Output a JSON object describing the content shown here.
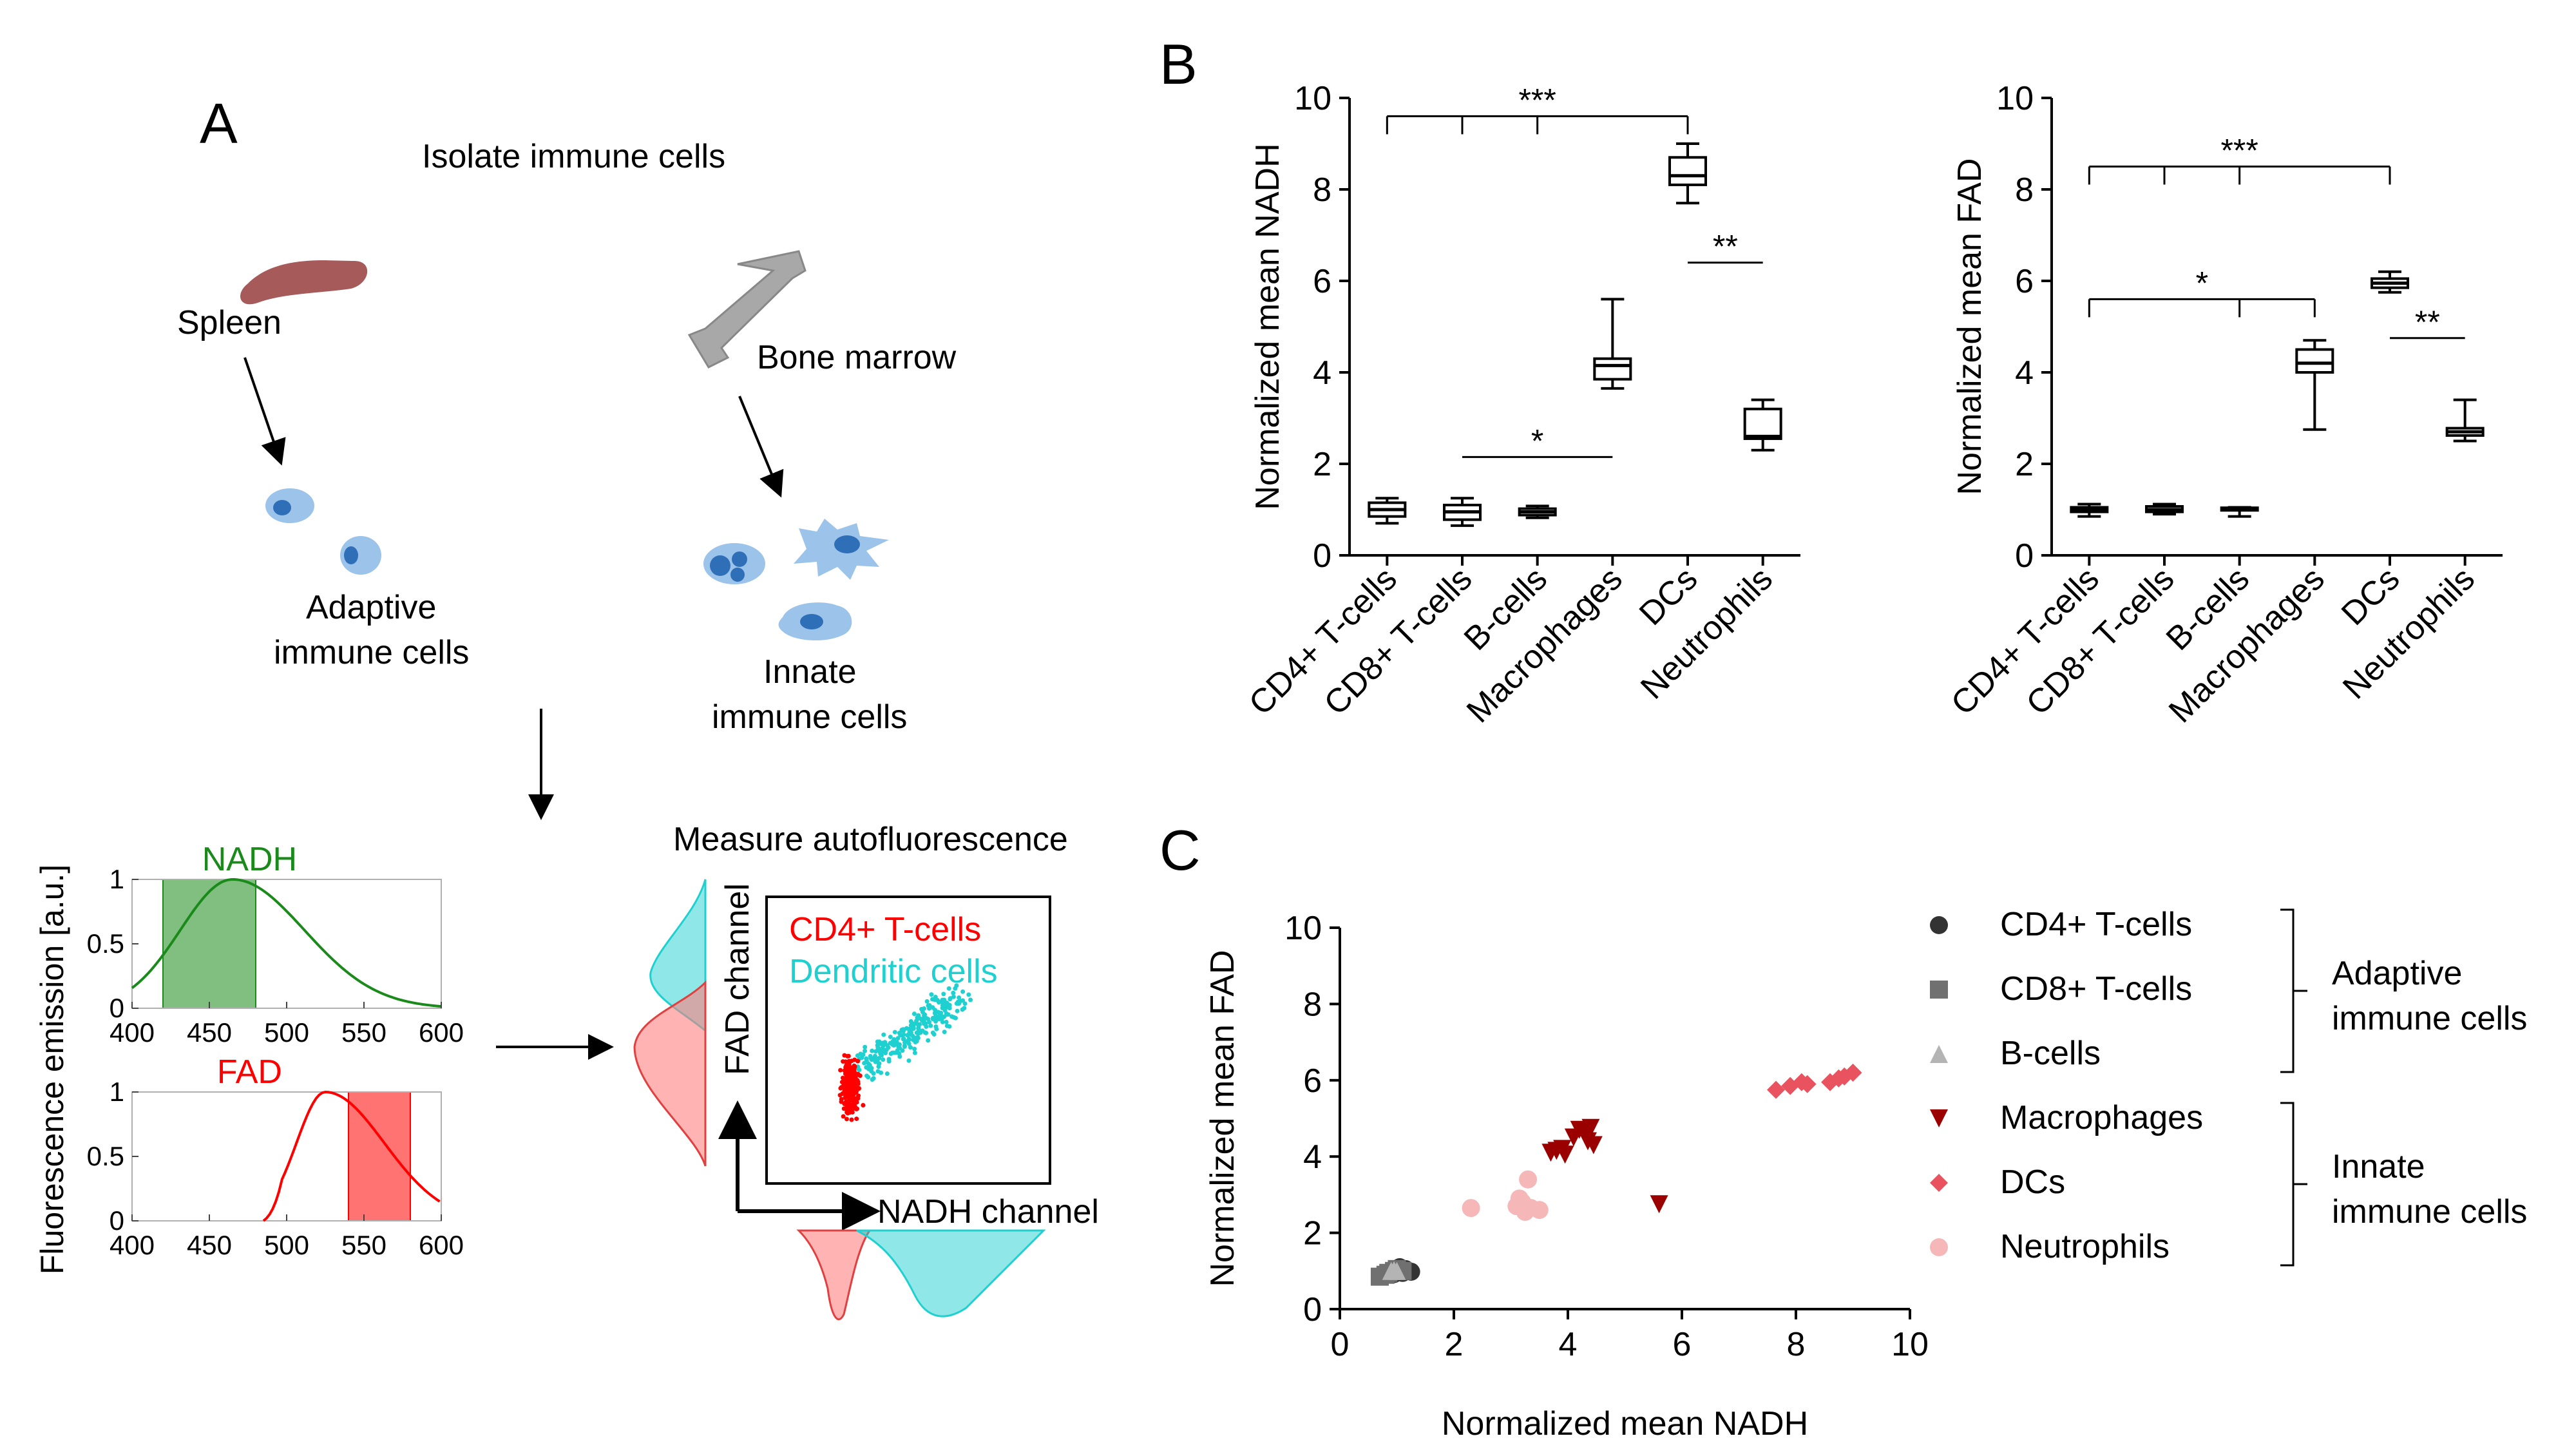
{
  "panel_a": {
    "label": "A",
    "title": "Isolate immune cells",
    "spleen_label": "Spleen",
    "bone_marrow_label": "Bone marrow",
    "adaptive_label_1": "Adaptive",
    "adaptive_label_2": "immune cells",
    "innate_label_1": "Innate",
    "innate_label_2": "immune cells",
    "measure_label": "Measure autofluorescence",
    "fad_channel_label": "FAD channel",
    "nadh_channel_label": "NADH channel",
    "flow_legend": [
      {
        "name": "CD4+ T-cells",
        "color": "#ff0000"
      },
      {
        "name": "Dendritic cells",
        "color": "#1fd0d0"
      }
    ],
    "colors": {
      "spleen": "#a65a5a",
      "bone": "#a8a8a8",
      "cell": "#9cc3ea",
      "nucleus": "#2f6fb8",
      "nadh": "#1a8a1a",
      "fad": "#ff0000",
      "cyan": "#1fd0d0"
    }
  },
  "chart_data": [
    {
      "type": "line",
      "title": "NADH",
      "ylabel": "Fluorescence emission [a.u.]",
      "xlim": [
        400,
        600
      ],
      "ylim": [
        0,
        1
      ],
      "xticks": [
        "400",
        "450",
        "500",
        "550",
        "600"
      ],
      "yticks": [
        "0",
        "0.5",
        "1"
      ],
      "peak": 465,
      "width_left": 40,
      "width_right": 55,
      "band": [
        420,
        480
      ],
      "color": "#1a8a1a"
    },
    {
      "type": "line",
      "title": "FAD",
      "xlim": [
        400,
        600
      ],
      "ylim": [
        0,
        1
      ],
      "xticks": [
        "400",
        "450",
        "500",
        "550",
        "600"
      ],
      "yticks": [
        "0",
        "0.5",
        "1"
      ],
      "peak": 525,
      "width_left": 22,
      "width_right": 45,
      "start": 485,
      "band": [
        540,
        580
      ],
      "color": "#ff0000"
    },
    {
      "type": "box",
      "panel_label": "B",
      "ylabel": "Normalized mean NADH",
      "ylim": [
        0,
        10
      ],
      "yticks": [
        "0",
        "2",
        "4",
        "6",
        "8",
        "10"
      ],
      "categories": [
        "CD4+ T-cells",
        "CD8+ T-cells",
        "B-cells",
        "Macrophages",
        "DCs",
        "Neutrophils"
      ],
      "boxes": [
        {
          "min": 0.7,
          "q1": 0.85,
          "median": 1.0,
          "q3": 1.15,
          "max": 1.25
        },
        {
          "min": 0.65,
          "q1": 0.78,
          "median": 0.95,
          "q3": 1.1,
          "max": 1.25
        },
        {
          "min": 0.82,
          "q1": 0.88,
          "median": 0.95,
          "q3": 1.02,
          "max": 1.08
        },
        {
          "min": 3.65,
          "q1": 3.85,
          "median": 4.15,
          "q3": 4.3,
          "max": 5.6
        },
        {
          "min": 7.7,
          "q1": 8.1,
          "median": 8.3,
          "q3": 8.7,
          "max": 9.0
        },
        {
          "min": 2.3,
          "q1": 2.55,
          "median": 2.6,
          "q3": 3.2,
          "max": 3.4
        }
      ],
      "brackets": [
        {
          "from": 0,
          "to": 4,
          "ticks": [
            0,
            1,
            2,
            4
          ],
          "y": 9.6,
          "label": "***"
        },
        {
          "from": 4,
          "to": 5,
          "ticks": [],
          "y": 6.4,
          "label": "**"
        },
        {
          "from": 1,
          "to": 3,
          "ticks": [],
          "y": 2.15,
          "label": "*"
        }
      ]
    },
    {
      "type": "box",
      "ylabel": "Normalized mean FAD",
      "ylim": [
        0,
        10
      ],
      "yticks": [
        "0",
        "2",
        "4",
        "6",
        "8",
        "10"
      ],
      "categories": [
        "CD4+ T-cells",
        "CD8+ T-cells",
        "B-cells",
        "Macrophages",
        "DCs",
        "Neutrophils"
      ],
      "boxes": [
        {
          "min": 0.85,
          "q1": 0.95,
          "median": 1.0,
          "q3": 1.05,
          "max": 1.12
        },
        {
          "min": 0.9,
          "q1": 0.95,
          "median": 1.0,
          "q3": 1.07,
          "max": 1.12
        },
        {
          "min": 0.85,
          "q1": 1.0,
          "median": 1.02,
          "q3": 1.04,
          "max": 1.05
        },
        {
          "min": 2.75,
          "q1": 4.0,
          "median": 4.2,
          "q3": 4.5,
          "max": 4.7
        },
        {
          "min": 5.75,
          "q1": 5.85,
          "median": 5.95,
          "q3": 6.05,
          "max": 6.2
        },
        {
          "min": 2.5,
          "q1": 2.62,
          "median": 2.7,
          "q3": 2.78,
          "max": 3.4
        }
      ],
      "brackets": [
        {
          "from": 0,
          "to": 4,
          "ticks": [
            0,
            1,
            2,
            4
          ],
          "y": 8.5,
          "label": "***"
        },
        {
          "from": 0,
          "to": 3,
          "ticks": [
            0,
            2,
            3
          ],
          "y": 5.6,
          "label": "*"
        },
        {
          "from": 4,
          "to": 5,
          "ticks": [],
          "y": 4.75,
          "label": "**"
        }
      ]
    },
    {
      "type": "scatter",
      "panel_label": "C",
      "xlabel": "Normalized mean NADH",
      "ylabel": "Normalized mean FAD",
      "xlim": [
        0,
        10
      ],
      "ylim": [
        0,
        10
      ],
      "xticks": [
        "0",
        "2",
        "4",
        "6",
        "8",
        "10"
      ],
      "yticks": [
        "0",
        "2",
        "4",
        "6",
        "8",
        "10"
      ],
      "series": [
        {
          "name": "CD4+ T-cells",
          "marker": "circle",
          "color": "#333333",
          "points": [
            [
              0.8,
              0.9
            ],
            [
              0.9,
              1.0
            ],
            [
              1.0,
              1.05
            ],
            [
              1.05,
              1.1
            ],
            [
              1.1,
              0.95
            ],
            [
              1.15,
              1.05
            ],
            [
              1.2,
              1.0
            ],
            [
              1.25,
              0.98
            ],
            [
              0.95,
              0.92
            ]
          ]
        },
        {
          "name": "CD8+ T-cells",
          "marker": "square",
          "color": "#707070",
          "points": [
            [
              0.7,
              0.85
            ],
            [
              0.8,
              0.9
            ],
            [
              0.85,
              0.95
            ],
            [
              0.95,
              1.0
            ],
            [
              1.0,
              1.05
            ],
            [
              1.1,
              1.0
            ]
          ]
        },
        {
          "name": "B-cells",
          "marker": "triangle",
          "color": "#b4b4b4",
          "points": [
            [
              0.9,
              1.0
            ],
            [
              0.95,
              1.02
            ],
            [
              1.0,
              1.0
            ]
          ]
        },
        {
          "name": "Macrophages",
          "marker": "triangle-down",
          "color": "#9b0000",
          "points": [
            [
              3.7,
              4.1
            ],
            [
              3.8,
              4.15
            ],
            [
              3.9,
              4.2
            ],
            [
              3.95,
              4.05
            ],
            [
              4.1,
              4.5
            ],
            [
              4.2,
              4.7
            ],
            [
              4.3,
              4.6
            ],
            [
              4.4,
              4.75
            ],
            [
              4.35,
              4.4
            ],
            [
              4.45,
              4.3
            ],
            [
              5.6,
              2.75
            ]
          ]
        },
        {
          "name": "DCs",
          "marker": "diamond",
          "color": "#e8535f",
          "points": [
            [
              7.65,
              5.75
            ],
            [
              7.9,
              5.85
            ],
            [
              8.1,
              5.95
            ],
            [
              8.2,
              5.9
            ],
            [
              8.6,
              5.95
            ],
            [
              8.75,
              6.05
            ],
            [
              8.85,
              6.1
            ],
            [
              9.0,
              6.2
            ]
          ]
        },
        {
          "name": "Neutrophils",
          "marker": "circle",
          "color": "#f5b7b7",
          "points": [
            [
              2.3,
              2.65
            ],
            [
              3.1,
              2.7
            ],
            [
              3.2,
              2.8
            ],
            [
              3.25,
              2.55
            ],
            [
              3.3,
              3.4
            ],
            [
              3.35,
              2.65
            ],
            [
              3.5,
              2.6
            ],
            [
              3.15,
              2.9
            ]
          ]
        }
      ],
      "groups": [
        {
          "line1": "Adaptive",
          "line2": "immune cells"
        },
        {
          "line1": "Innate",
          "line2": "immune cells"
        }
      ]
    }
  ]
}
